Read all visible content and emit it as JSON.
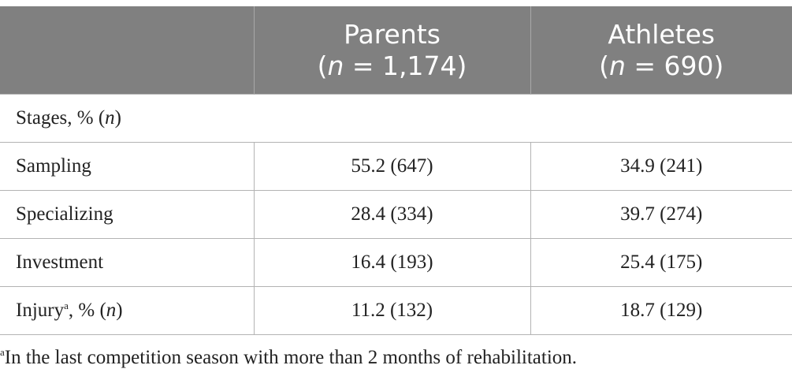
{
  "table": {
    "header": {
      "col1": "",
      "parents_title": "Parents",
      "parents_n_prefix": "(",
      "parents_n_symbol": "n",
      "parents_n_value": " = 1,174)",
      "athletes_title": "Athletes",
      "athletes_n_prefix": "(",
      "athletes_n_symbol": "n",
      "athletes_n_value": " = 690)"
    },
    "section": {
      "label_prefix": "Stages, % (",
      "label_symbol": "n",
      "label_suffix": ")"
    },
    "rows": [
      {
        "label": "Sampling",
        "parents": "55.2 (647)",
        "athletes": "34.9 (241)"
      },
      {
        "label": "Specializing",
        "parents": "28.4 (334)",
        "athletes": "39.7 (274)"
      },
      {
        "label": "Investment",
        "parents": "16.4 (193)",
        "athletes": "25.4 (175)"
      }
    ],
    "injury_row": {
      "label": "Injury",
      "footnote_mark": "a",
      "label_mid": ", % (",
      "label_symbol": "n",
      "label_suffix": ")",
      "parents": "11.2 (132)",
      "athletes": "18.7 (129)"
    }
  },
  "footnote": {
    "mark": "a",
    "text": "In the last competition season with more than 2 months of rehabilitation."
  },
  "colors": {
    "header_bg": "#808080",
    "header_text": "#ffffff",
    "rule": "#b3b3b3"
  }
}
